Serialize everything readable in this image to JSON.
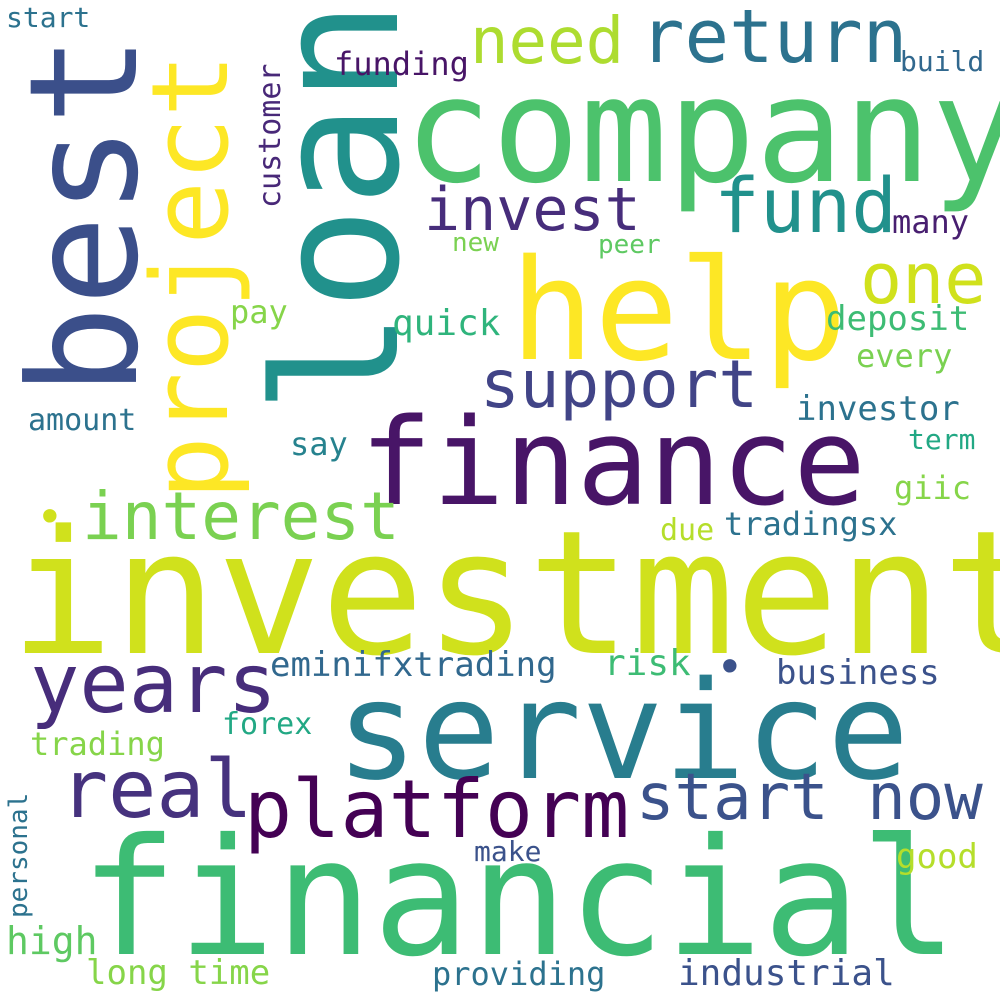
{
  "colors": {
    "background": "#ffffff",
    "palette": [
      "#440154",
      "#472d7b",
      "#3b528b",
      "#2c728e",
      "#21918c",
      "#28ae80",
      "#5ec962",
      "#addc30",
      "#d0e11c",
      "#fde725"
    ]
  },
  "words": {
    "investment": "investment",
    "financial": "financial",
    "company": "company",
    "loan": "loan",
    "best": "best",
    "help": "help",
    "finance": "finance",
    "service": "service",
    "project": "project",
    "platform": "platform",
    "years": "years",
    "real": "real",
    "start_now": "start now",
    "support": "support",
    "interest": "interest",
    "return": "return",
    "fund": "fund",
    "need": "need",
    "invest": "invest",
    "one": "one",
    "start": "start",
    "funding": "funding",
    "build": "build",
    "customer": "customer",
    "many": "many",
    "new": "new",
    "peer": "peer",
    "pay": "pay",
    "quick": "quick",
    "deposit": "deposit",
    "every": "every",
    "investor": "investor",
    "amount": "amount",
    "say": "say",
    "term": "term",
    "giic": "giic",
    "due": "due",
    "tradingsx": "tradingsx",
    "eminifxtrading": "eminifxtrading",
    "risk": "risk",
    "business": "business",
    "forex": "forex",
    "trading": "trading",
    "personal": "personal",
    "make": "make",
    "good": "good",
    "high": "high",
    "long_time": "long time",
    "providing": "providing",
    "industrial": "industrial",
    "dot_left": "•",
    "dot_right": "•"
  }
}
